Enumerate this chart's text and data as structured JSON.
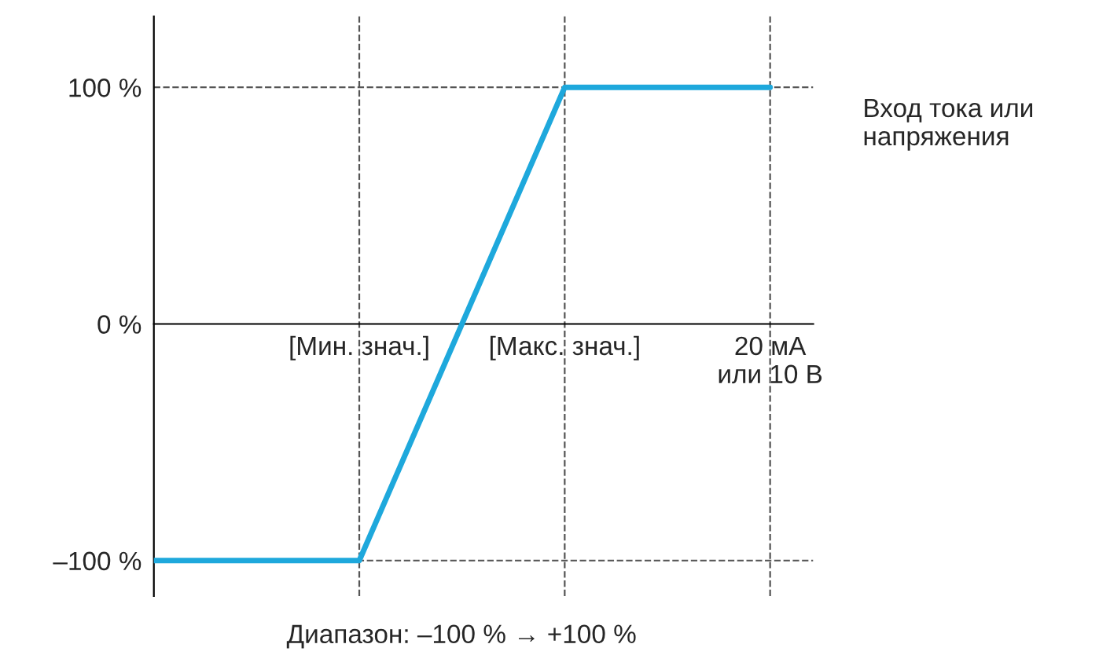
{
  "chart_data": {
    "type": "line",
    "categories": [
      null,
      "[Мин. знач.]",
      "[Макс. знач.]",
      "20 мА\nили 10 В"
    ],
    "series": [
      {
        "color": "#1ea8dc",
        "values": [
          -100,
          -100,
          100,
          100
        ]
      }
    ],
    "ylim": [
      -115,
      130
    ],
    "yticks": [
      {
        "value": -100,
        "label": "–100 %"
      },
      {
        "value": 0,
        "label": "0 %"
      },
      {
        "value": 100,
        "label": "100 %"
      }
    ],
    "ref_lines": [
      {
        "axis": "y",
        "value": 100,
        "color": "#555555",
        "line_style": "dashed"
      },
      {
        "axis": "y",
        "value": -100,
        "color": "#555555",
        "line_style": "dashed"
      },
      {
        "axis": "x",
        "value": "[Мин. знач.]",
        "color": "#555555",
        "line_style": "dashed"
      },
      {
        "axis": "x",
        "value": "[Макс. знач.]",
        "color": "#555555",
        "line_style": "dashed"
      },
      {
        "axis": "x",
        "value": "20 мА\nили 10 В",
        "color": "#555555",
        "line_style": "dashed"
      }
    ],
    "annotations": [
      "Вход тока или\nнапряжения",
      "Диапазон: –100 % → +100 %"
    ],
    "grid": false,
    "legend": false
  }
}
